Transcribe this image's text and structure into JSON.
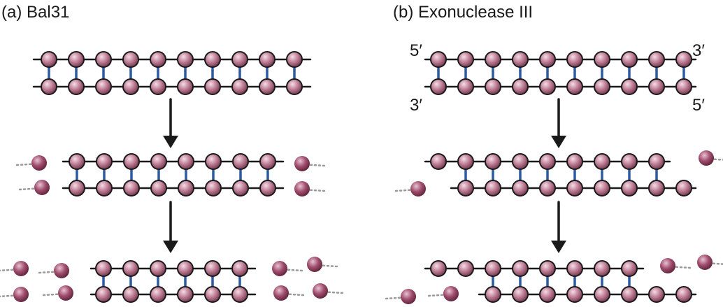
{
  "panels": {
    "a": {
      "title": "(a) Bal31"
    },
    "b": {
      "title": "(b) Exonuclease III",
      "ends": {
        "top_left": "5′",
        "top_right": "3′",
        "bottom_left": "3′",
        "bottom_right": "5′"
      }
    }
  },
  "colors": {
    "backbone": "#1a1a1a",
    "base_pair_bond": "#2b5aa0",
    "nucleotide": "#c4869c",
    "nucleotide_dark": "#6e2f48",
    "released_nucleotide": "#a14e6e",
    "released_trail": "#9a9a9a",
    "arrow": "#1a1a1a"
  },
  "structure": {
    "initial_base_pairs": 10,
    "digestion_steps": 2,
    "released_nucleotides": {
      "a_step1": 4,
      "a_step2": 8,
      "b_step1": 2,
      "b_step2": 4
    }
  }
}
